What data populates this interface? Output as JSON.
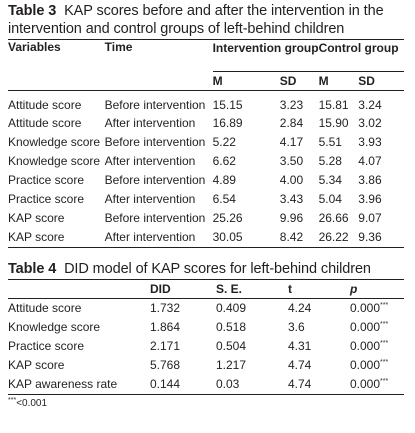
{
  "table3": {
    "label": "Table 3",
    "title": "KAP scores before and after the intervention in the intervention and control groups of left-behind children",
    "headers": {
      "variables": "Variables",
      "time": "Time",
      "intervention_group": "Intervention group",
      "control_group": "Control group",
      "m": "M",
      "sd": "SD"
    },
    "rows": [
      {
        "variable": "Attitude score",
        "time": "Before intervention",
        "int_m": "15.15",
        "int_sd": "3.23",
        "ctl_m": "15.81",
        "ctl_sd": "3.24"
      },
      {
        "variable": "Attitude score",
        "time": "After intervention",
        "int_m": "16.89",
        "int_sd": "2.84",
        "ctl_m": "15.90",
        "ctl_sd": "3.02"
      },
      {
        "variable": "Knowledge score",
        "time": "Before intervention",
        "int_m": "5.22",
        "int_sd": "4.17",
        "ctl_m": "5.51",
        "ctl_sd": "3.93"
      },
      {
        "variable": "Knowledge score",
        "time": "After intervention",
        "int_m": "6.62",
        "int_sd": "3.50",
        "ctl_m": "5.28",
        "ctl_sd": "4.07"
      },
      {
        "variable": "Practice score",
        "time": "Before intervention",
        "int_m": "4.89",
        "int_sd": "4.00",
        "ctl_m": "5.34",
        "ctl_sd": "3.86"
      },
      {
        "variable": "Practice score",
        "time": "After intervention",
        "int_m": "6.54",
        "int_sd": "3.43",
        "ctl_m": "5.04",
        "ctl_sd": "3.96"
      },
      {
        "variable": "KAP score",
        "time": "Before intervention",
        "int_m": "25.26",
        "int_sd": "9.96",
        "ctl_m": "26.66",
        "ctl_sd": "9.07"
      },
      {
        "variable": "KAP score",
        "time": "After intervention",
        "int_m": "30.05",
        "int_sd": "8.42",
        "ctl_m": "26.22",
        "ctl_sd": "9.36"
      }
    ]
  },
  "table4": {
    "label": "Table 4",
    "title": "DID model of KAP scores for left-behind children",
    "headers": {
      "did": "DID",
      "se": "S. E.",
      "t": "t",
      "p": "p"
    },
    "rows": [
      {
        "variable": "Attitude score",
        "did": "1.732",
        "se": "0.409",
        "t": "4.24",
        "p": "0.000",
        "sig": "***"
      },
      {
        "variable": "Knowledge score",
        "did": "1.864",
        "se": "0.518",
        "t": "3.6",
        "p": "0.000",
        "sig": "***"
      },
      {
        "variable": "Practice score",
        "did": "2.171",
        "se": "0.504",
        "t": "4.31",
        "p": "0.000",
        "sig": "***"
      },
      {
        "variable": "KAP score",
        "did": "5.768",
        "se": "1.217",
        "t": "4.74",
        "p": "0.000",
        "sig": "***"
      },
      {
        "variable": "KAP awareness rate",
        "did": "0.144",
        "se": "0.03",
        "t": "4.74",
        "p": "0.000",
        "sig": "***"
      }
    ],
    "footnote": {
      "sig": "***",
      "text": "<0.001"
    }
  }
}
